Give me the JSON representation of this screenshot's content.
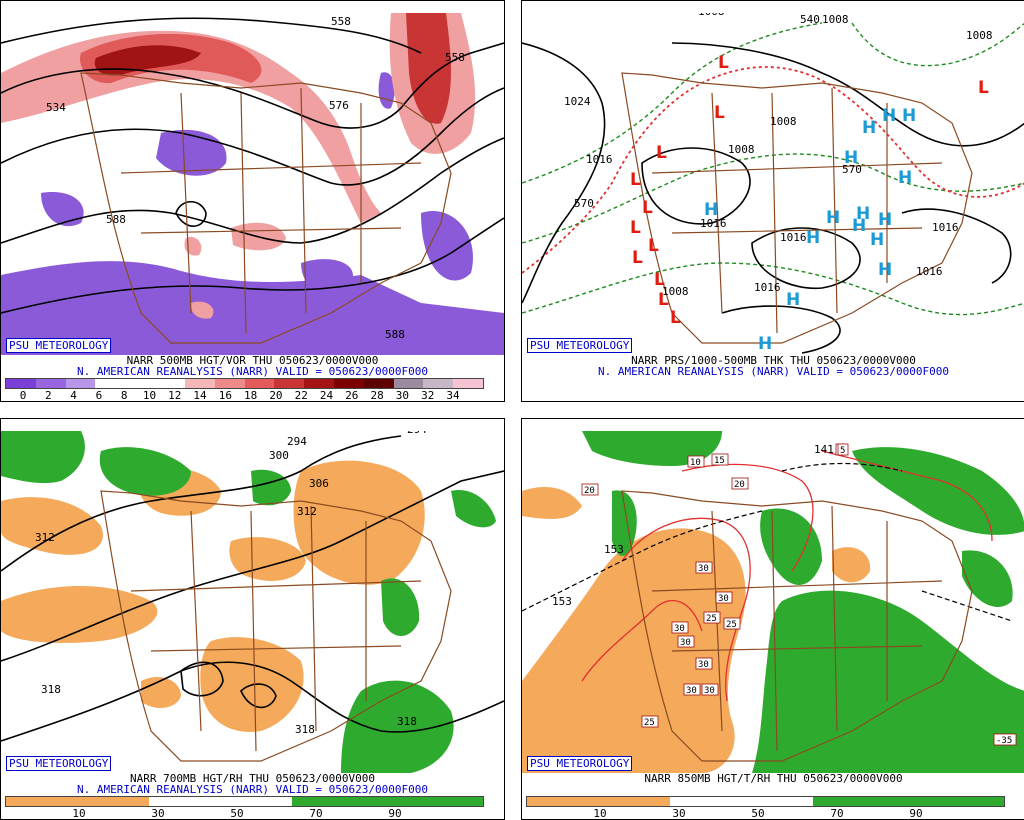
{
  "colors": {
    "vort_scale": [
      "#7a3fd6",
      "#9a66e0",
      "#b897ea",
      "#ffffff",
      "#ffffff",
      "#ffffff",
      "#f5b7b7",
      "#ee8a8a",
      "#e35b5b",
      "#c93434",
      "#a51414",
      "#7d0000",
      "#5e0000",
      "#9b8aa0",
      "#c7b7c7",
      "#f6c3d3"
    ],
    "rh_dry": "#f5a95a",
    "rh_moist": "#2eab2e",
    "border": "#8a4a22",
    "contour": "#000000",
    "low": "#e01b10",
    "high": "#1c9ad6",
    "thickness": "#1d8a1d",
    "isotherm": "#e33030",
    "badge": "#0000cc"
  },
  "panels": [
    {
      "badge": "PSU METEOROLOGY",
      "title_line1": "NARR 500MB HGT/VOR THU 050623/0000V000",
      "title_line2": "N. AMERICAN REANALYSIS (NARR) VALID = 050623/0000F000",
      "colorbar_labels": [
        "0",
        "2",
        "4",
        "6",
        "8",
        "10",
        "12",
        "14",
        "16",
        "18",
        "20",
        "22",
        "24",
        "26",
        "28",
        "30",
        "32",
        "34"
      ],
      "contour_labels": [
        "558",
        "534",
        "576",
        "588",
        "588",
        "558",
        "588"
      ]
    },
    {
      "badge": "PSU METEOROLOGY",
      "title_line1": "NARR PRS/1000-500MB THK THU 050623/0000V000",
      "title_line2": "N. AMERICAN REANALYSIS (NARR) VALID = 050623/0000F000",
      "contour_labels": [
        "1024",
        "1016",
        "1008",
        "1008",
        "1008",
        "1016",
        "1016",
        "1016",
        "1016",
        "1016",
        "1008",
        "1008",
        "570",
        "570",
        "540",
        "1008"
      ],
      "low_markers": [
        "L",
        "L",
        "L",
        "L",
        "L",
        "L",
        "L",
        "L",
        "L",
        "L",
        "L",
        "L"
      ],
      "high_markers": [
        "H",
        "H",
        "H",
        "H",
        "H",
        "H",
        "H",
        "H",
        "H",
        "H",
        "H",
        "H",
        "H",
        "H",
        "H"
      ]
    },
    {
      "badge": "PSU METEOROLOGY",
      "title_line1": "NARR 700MB HGT/RH THU 050623/0000V000",
      "title_line2": "N. AMERICAN REANALYSIS (NARR) VALID = 050623/0000F000",
      "colorbar_labels": [
        "10",
        "30",
        "50",
        "70",
        "90"
      ],
      "contour_labels": [
        "312",
        "294",
        "300",
        "306",
        "312",
        "318",
        "318",
        "318",
        "294"
      ]
    },
    {
      "badge": "PSU METEOROLOGY",
      "title_line1": "NARR 850MB HGT/T/RH THU 050623/0000V000",
      "title_line2": "",
      "colorbar_labels": [
        "10",
        "30",
        "50",
        "70",
        "90"
      ],
      "contour_labels": [
        "153",
        "153",
        "141",
        "5",
        "15",
        "10",
        "20",
        "30",
        "30",
        "25",
        "25",
        "30",
        "30",
        "30",
        "30",
        "30",
        "25",
        "20",
        "5",
        "-35"
      ]
    }
  ]
}
